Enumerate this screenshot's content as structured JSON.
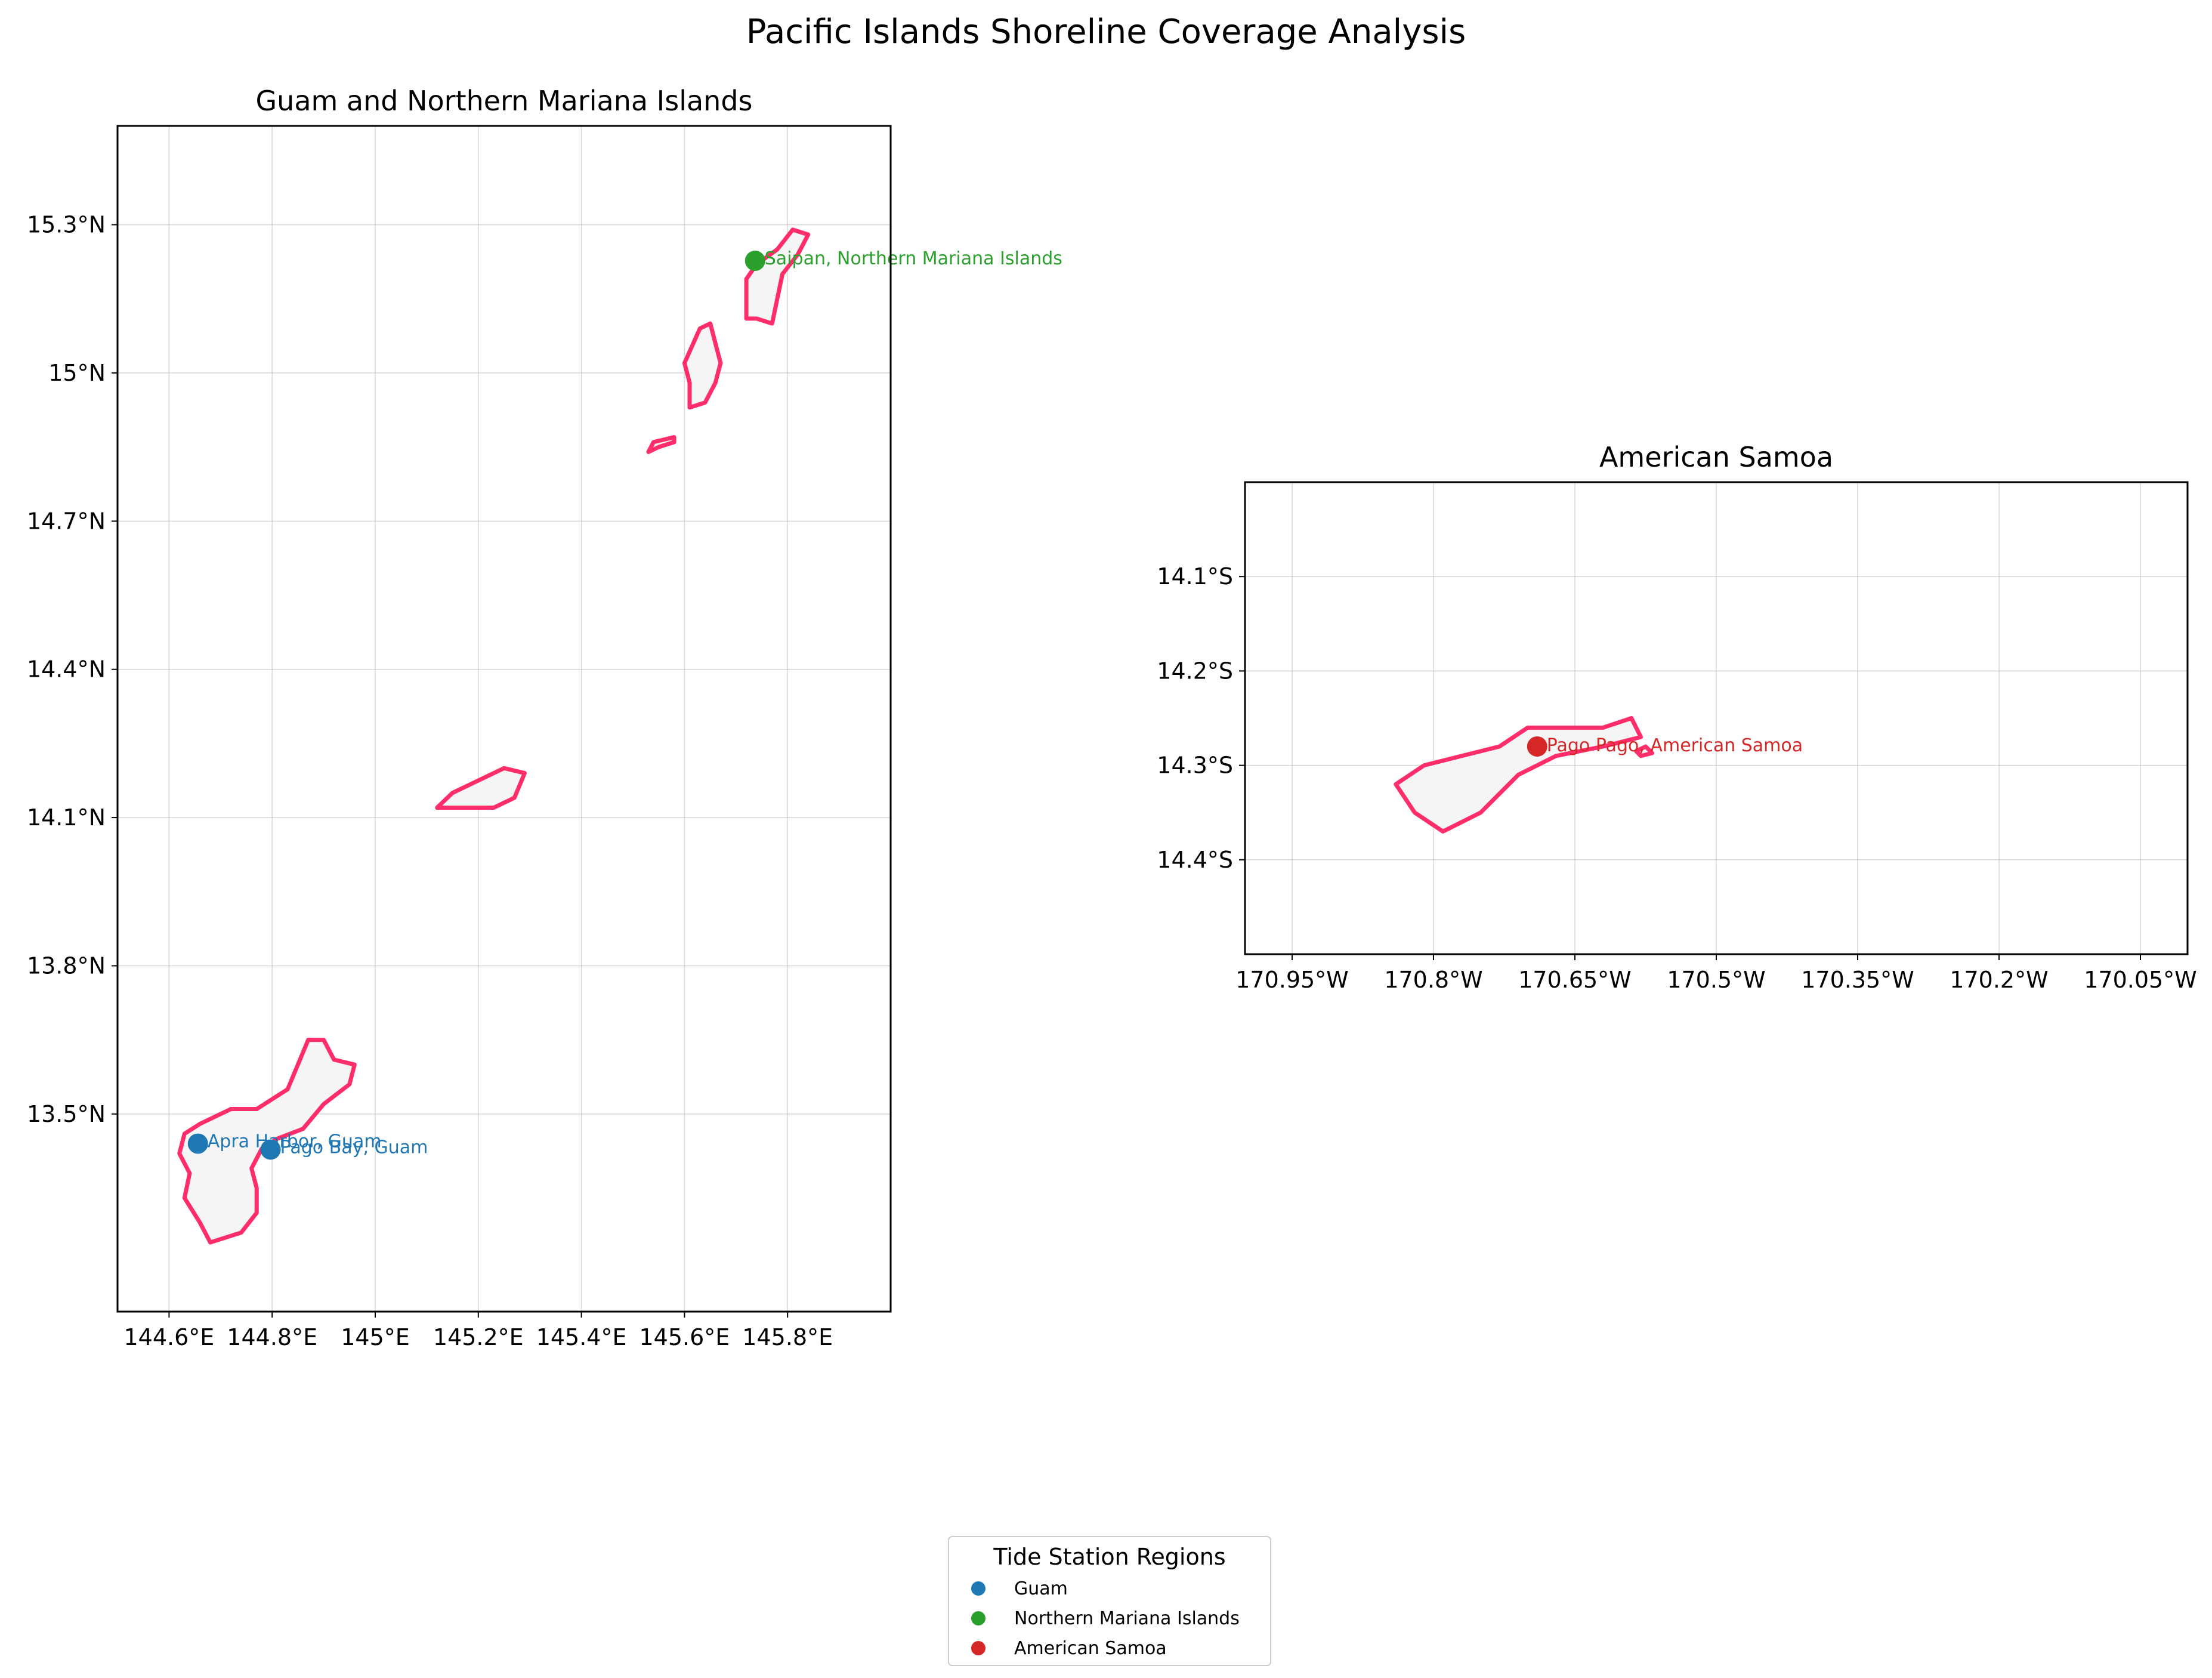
{
  "figure": {
    "suptitle": "Pacific Islands Shoreline Coverage Analysis"
  },
  "colors": {
    "shoreline": "#ff2d6a",
    "land": "#f5f5f5",
    "coast": "#555555",
    "guam": "#1f77b4",
    "northern_mariana_islands": "#2ca02c",
    "american_samoa": "#d62728"
  },
  "panels": {
    "left": {
      "title": "Guam and Northern Mariana Islands",
      "xlim": [
        144.5,
        146.0
      ],
      "ylim": [
        13.1,
        15.5
      ],
      "x_ticks": [
        144.6,
        144.8,
        145.0,
        145.2,
        145.4,
        145.6,
        145.8
      ],
      "x_tick_labels": [
        "144.6°E",
        "144.8°E",
        "145°E",
        "145.2°E",
        "145.4°E",
        "145.6°E",
        "145.8°E"
      ],
      "y_ticks": [
        13.5,
        13.8,
        14.1,
        14.4,
        14.7,
        15.0,
        15.3
      ],
      "y_tick_labels": [
        "13.5°N",
        "13.8°N",
        "14.1°N",
        "14.4°N",
        "14.7°N",
        "15°N",
        "15.3°N"
      ],
      "grid": true,
      "stations": [
        {
          "name": "Apra Harbor, Guam",
          "lon": 144.656,
          "lat": 13.44,
          "region": "guam"
        },
        {
          "name": "Pago Bay, Guam",
          "lon": 144.797,
          "lat": 13.428,
          "region": "guam"
        },
        {
          "name": "Saipan, Northern Mariana Islands",
          "lon": 145.737,
          "lat": 15.227,
          "region": "northern_mariana_islands"
        }
      ]
    },
    "right": {
      "title": "American Samoa",
      "xlim": [
        -171.0,
        -170.0
      ],
      "ylim": [
        -14.5,
        -14.0
      ],
      "x_ticks": [
        -170.95,
        -170.8,
        -170.65,
        -170.5,
        -170.35,
        -170.2,
        -170.05
      ],
      "x_tick_labels": [
        "170.95°W",
        "170.8°W",
        "170.65°W",
        "170.5°W",
        "170.35°W",
        "170.2°W",
        "170.05°W"
      ],
      "y_ticks": [
        -14.1,
        -14.2,
        -14.3,
        -14.4
      ],
      "y_tick_labels": [
        "14.1°S",
        "14.2°S",
        "14.3°S",
        "14.4°S"
      ],
      "grid": true,
      "stations": [
        {
          "name": "Pago Pago, American Samoa",
          "lon": -170.69,
          "lat": -14.28,
          "region": "american_samoa"
        }
      ]
    }
  },
  "legend": {
    "title": "Tide Station Regions",
    "entries": [
      {
        "label": "Guam",
        "region": "guam"
      },
      {
        "label": "Northern Mariana Islands",
        "region": "northern_mariana_islands"
      },
      {
        "label": "American Samoa",
        "region": "american_samoa"
      }
    ]
  }
}
